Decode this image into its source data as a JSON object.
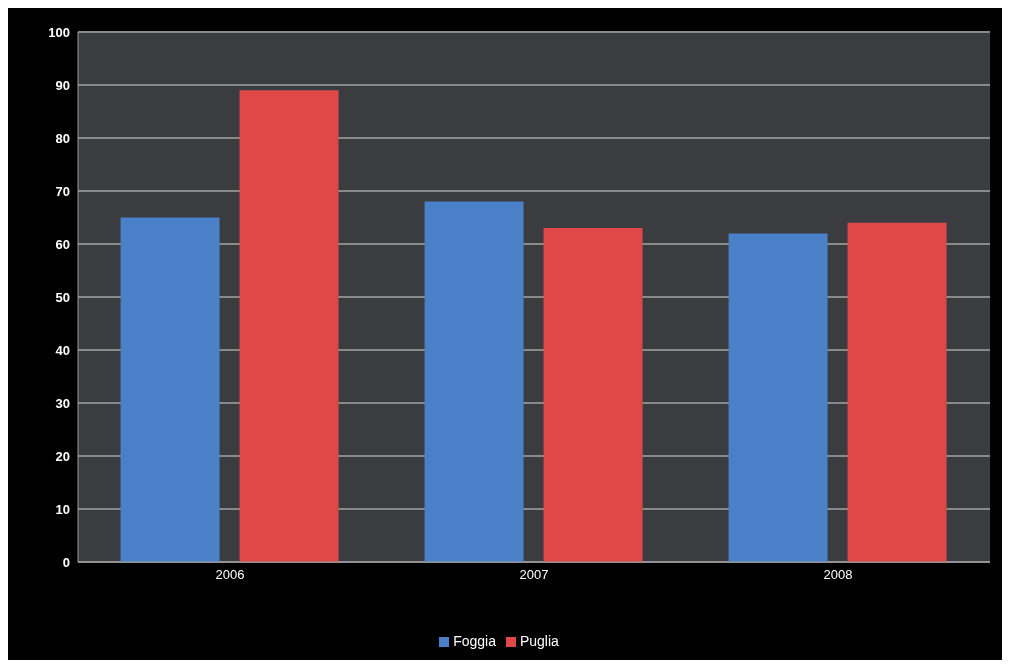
{
  "chart_data": {
    "type": "bar",
    "categories": [
      "2006",
      "2007",
      "2008"
    ],
    "series": [
      {
        "name": "Foggia",
        "color": "#4a80c8",
        "values": [
          65,
          68,
          62
        ]
      },
      {
        "name": "Puglia",
        "color": "#e04848",
        "values": [
          89,
          63,
          64
        ]
      }
    ],
    "ylim": [
      0,
      100
    ],
    "yticks": [
      0,
      10,
      20,
      30,
      40,
      50,
      60,
      70,
      80,
      90,
      100
    ],
    "grid": "y",
    "legend": "bottom"
  }
}
